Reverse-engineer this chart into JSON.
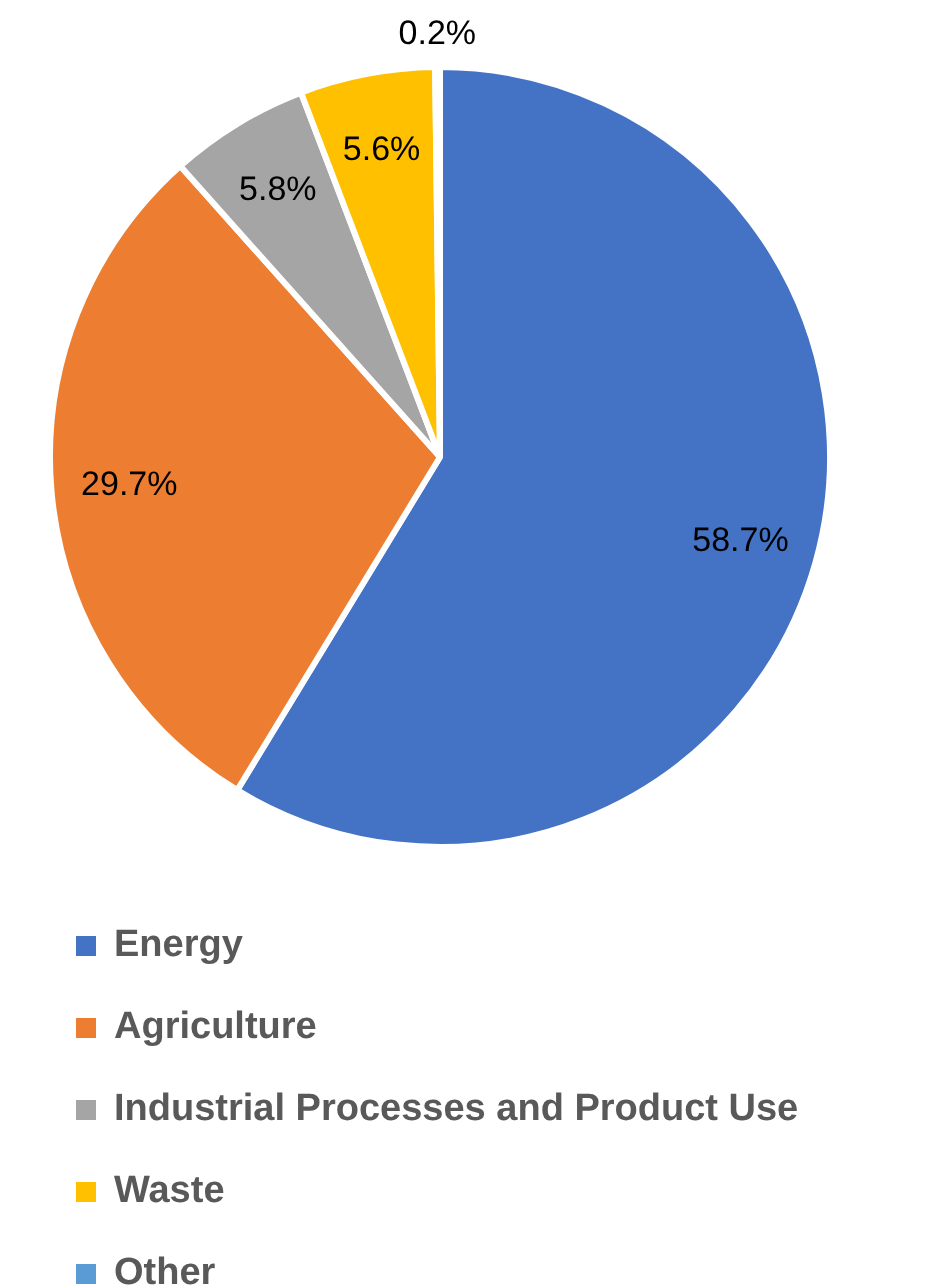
{
  "chart_data": {
    "type": "pie",
    "categories": [
      "Energy",
      "Agriculture",
      "Industrial Processes and Product Use",
      "Waste",
      "Other"
    ],
    "values": [
      58.7,
      29.7,
      5.8,
      5.6,
      0.2
    ],
    "colors": [
      "#4472c4",
      "#ed7d31",
      "#a5a5a5",
      "#ffc000",
      "#5b9bd5"
    ],
    "value_labels": [
      "58.7%",
      "29.7%",
      "5.8%",
      "5.6%",
      "0.2%"
    ],
    "legend": "bottom"
  }
}
